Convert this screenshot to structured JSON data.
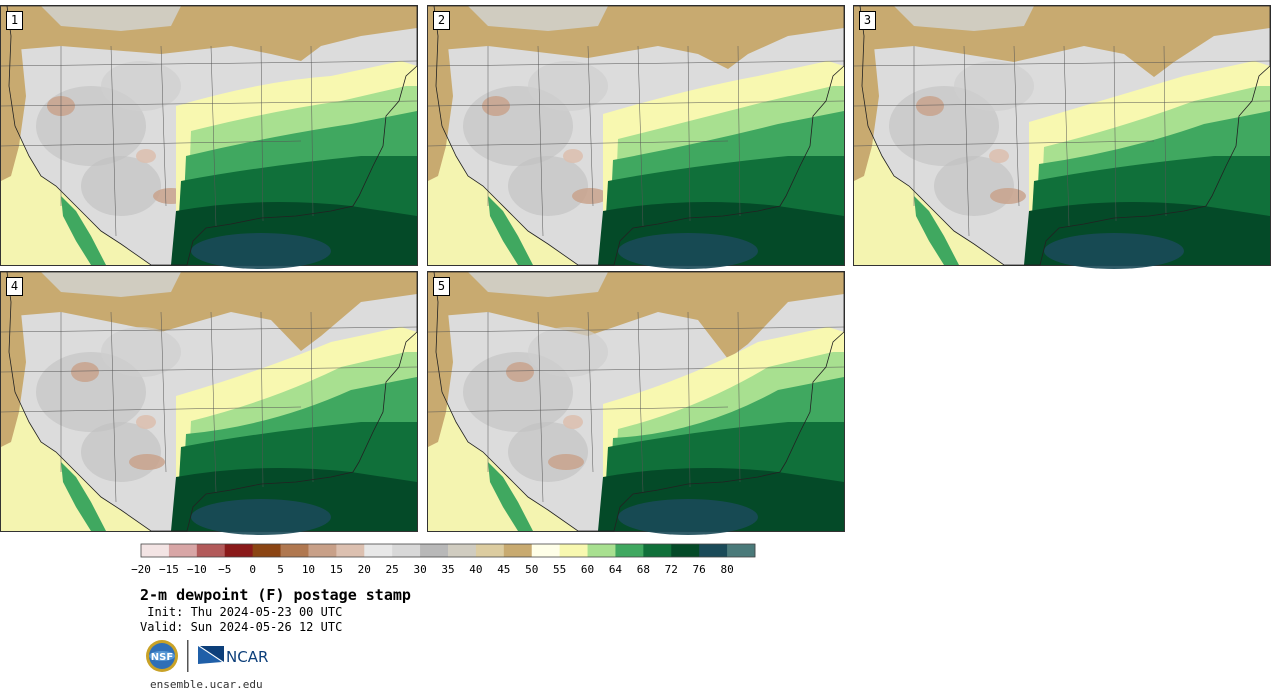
{
  "panels": [
    {
      "label": "1"
    },
    {
      "label": "2"
    },
    {
      "label": "3"
    },
    {
      "label": "4"
    },
    {
      "label": "5"
    }
  ],
  "colorbar": {
    "ticks": [
      "−20",
      "−15",
      "−10",
      "−5",
      "0",
      "5",
      "10",
      "15",
      "20",
      "25",
      "30",
      "35",
      "40",
      "45",
      "50",
      "55",
      "60",
      "64",
      "68",
      "72",
      "76",
      "80"
    ],
    "colors": [
      "#f3e4e4",
      "#d8a6a6",
      "#b25a5a",
      "#8a1a1a",
      "#8b4513",
      "#b07850",
      "#c8a088",
      "#dcc0b0",
      "#e8e8e8",
      "#d8d8d8",
      "#b8b8b8",
      "#d0ccc0",
      "#dccca0",
      "#c8aa70",
      "#ffffe8",
      "#f8f8b0",
      "#a8e090",
      "#40a860",
      "#10703a",
      "#044a28",
      "#1a4a58",
      "#4a7a7a"
    ]
  },
  "title": "2-m dewpoint (F) postage stamp",
  "init": " Init: Thu 2024-05-23 00 UTC",
  "valid": "Valid: Sun 2024-05-26 12 UTC",
  "logos": {
    "nsf": "NSF",
    "ncar": "NCAR"
  },
  "url": "ensemble.ucar.edu"
}
